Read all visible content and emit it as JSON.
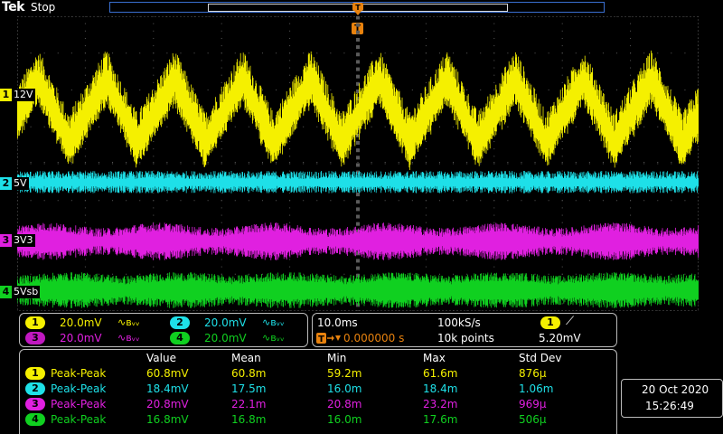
{
  "header": {
    "logo": "Tek",
    "run_state": "Stop"
  },
  "trigger": {
    "top_marker": "T",
    "position_marker": "T"
  },
  "colors": {
    "ch1": "#f5f000",
    "ch2": "#1ee0e8",
    "ch3": "#e020e0",
    "ch4": "#10d020",
    "grid": "#5a5a5a",
    "record_bar": "#3a6fd0",
    "trigger": "#e8820e"
  },
  "channels": [
    {
      "num": "1",
      "label": "12V",
      "scale": "20.0mV",
      "color": "#f5f000"
    },
    {
      "num": "2",
      "label": "5V",
      "scale": "20.0mV",
      "color": "#1ee0e8"
    },
    {
      "num": "3",
      "label": "3V3",
      "scale": "20.0mV",
      "color": "#e020e0"
    },
    {
      "num": "4",
      "label": "5Vsb",
      "scale": "20.0mV",
      "color": "#10d020"
    }
  ],
  "bandwidth_symbol": "∿ʙᵥᵥ",
  "horizontal": {
    "timebase": "10.0ms",
    "sample_rate": "100kS/s",
    "delay": "0.000000 s",
    "record_length": "10k points"
  },
  "trigger_info": {
    "source": "1",
    "slope": "⟋",
    "level": "5.20mV"
  },
  "measurements": {
    "headers": [
      "Value",
      "Mean",
      "Min",
      "Max",
      "Std Dev"
    ],
    "rows": [
      {
        "ch": "1",
        "name": "Peak-Peak",
        "value": "60.8mV",
        "mean": "60.8m",
        "min": "59.2m",
        "max": "61.6m",
        "std": "876µ",
        "color": "#f5f000"
      },
      {
        "ch": "2",
        "name": "Peak-Peak",
        "value": "18.4mV",
        "mean": "17.5m",
        "min": "16.0m",
        "max": "18.4m",
        "std": "1.06m",
        "color": "#1ee0e8"
      },
      {
        "ch": "3",
        "name": "Peak-Peak",
        "value": "20.8mV",
        "mean": "22.1m",
        "min": "20.8m",
        "max": "23.2m",
        "std": "969µ",
        "color": "#e020e0"
      },
      {
        "ch": "4",
        "name": "Peak-Peak",
        "value": "16.8mV",
        "mean": "16.8m",
        "min": "16.0m",
        "max": "17.6m",
        "std": "506µ",
        "color": "#10d020"
      }
    ]
  },
  "datetime": {
    "date": "20 Oct  2020",
    "time": "15:26:49"
  }
}
